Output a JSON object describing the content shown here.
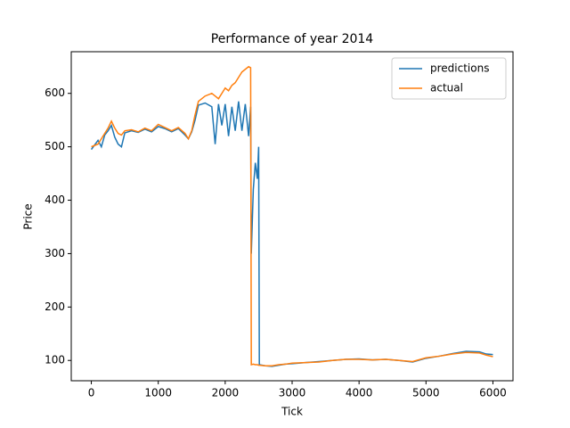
{
  "chart_data": {
    "type": "line",
    "title": "Performance of year 2014",
    "xlabel": "Tick",
    "ylabel": "Price",
    "xlim": [
      -300,
      6300
    ],
    "xticks": [
      0,
      1000,
      2000,
      3000,
      4000,
      5000,
      6000
    ],
    "ylim": [
      62,
      678
    ],
    "yticks": [
      100,
      200,
      300,
      400,
      500,
      600
    ],
    "legend": "upper right",
    "x": [
      0,
      100,
      150,
      200,
      250,
      300,
      350,
      400,
      450,
      500,
      600,
      700,
      800,
      900,
      1000,
      1100,
      1200,
      1300,
      1400,
      1450,
      1500,
      1550,
      1600,
      1700,
      1800,
      1850,
      1900,
      1950,
      2000,
      2050,
      2100,
      2150,
      2200,
      2250,
      2300,
      2350,
      2380,
      2390,
      2420,
      2450,
      2480,
      2500,
      2510,
      2600,
      2700,
      2800,
      2900,
      3000,
      3200,
      3400,
      3600,
      3800,
      4000,
      4200,
      4400,
      4600,
      4800,
      5000,
      5200,
      5400,
      5600,
      5800,
      5900,
      6000
    ],
    "series": [
      {
        "name": "predictions",
        "color": "#1f77b4",
        "values": [
          495,
          512,
          500,
          522,
          530,
          540,
          518,
          505,
          500,
          526,
          530,
          527,
          533,
          528,
          538,
          534,
          528,
          534,
          522,
          515,
          528,
          550,
          578,
          582,
          575,
          505,
          580,
          540,
          580,
          520,
          575,
          530,
          585,
          530,
          580,
          520,
          575,
          300,
          420,
          470,
          440,
          500,
          92,
          90,
          89,
          91,
          93,
          94,
          96,
          98,
          100,
          102,
          103,
          101,
          102,
          100,
          97,
          104,
          108,
          113,
          117,
          116,
          112,
          111
        ]
      },
      {
        "name": "actual",
        "color": "#ff7f0e",
        "values": [
          500,
          505,
          515,
          525,
          535,
          548,
          535,
          525,
          522,
          530,
          532,
          528,
          535,
          530,
          542,
          536,
          530,
          536,
          525,
          515,
          530,
          560,
          585,
          595,
          600,
          595,
          590,
          600,
          610,
          605,
          615,
          620,
          630,
          640,
          645,
          650,
          648,
          92,
          93,
          92,
          92,
          91,
          91,
          90,
          90,
          92,
          93,
          95,
          96,
          97,
          100,
          102,
          102,
          101,
          102,
          100,
          98,
          105,
          108,
          112,
          115,
          114,
          110,
          107
        ]
      }
    ]
  }
}
